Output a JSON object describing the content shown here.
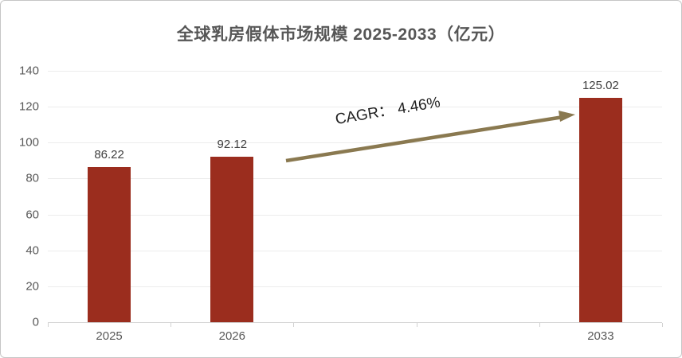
{
  "chart_data": {
    "type": "bar",
    "title": "全球乳房假体市场规模 2025-2033（亿元）",
    "categories": [
      "2025",
      "2026",
      "",
      "",
      "2033"
    ],
    "values": [
      86.22,
      92.12,
      null,
      null,
      125.02
    ],
    "value_labels": [
      "86.22",
      "92.12",
      null,
      null,
      "125.02"
    ],
    "yticks": [
      0,
      20,
      40,
      60,
      80,
      100,
      120,
      140
    ],
    "ylim": [
      0,
      140
    ],
    "xlabel": "",
    "ylabel": "",
    "grid": "horizontal",
    "legend": "none",
    "annotation": "CAGR： 4.46%"
  },
  "colors": {
    "bar": "#9b2d1e",
    "arrow": "#8a7950",
    "title_text": "#565656",
    "axis_text": "#595959",
    "value_text": "#3f3f3f",
    "gridline": "#ececec"
  },
  "icons": {
    "trend_arrow": "up-right-arrow"
  }
}
